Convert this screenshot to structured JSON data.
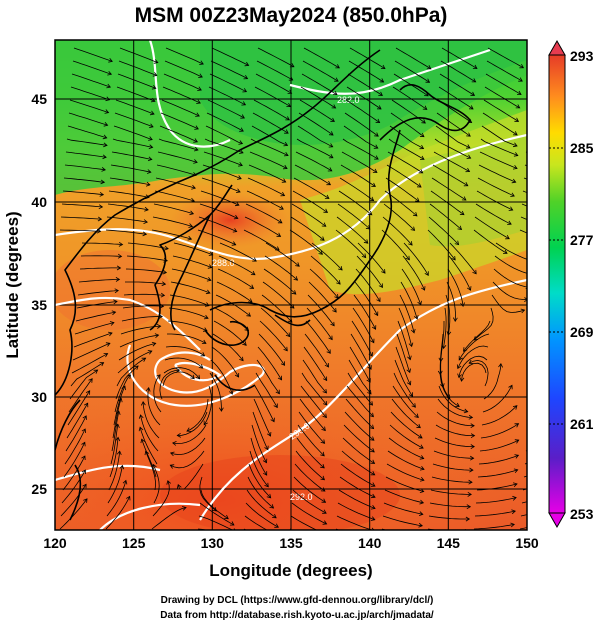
{
  "title": "MSM 00Z23May2024 (850.0hPa)",
  "xlabel": "Longitude (degrees)",
  "ylabel": "Latitude  (degrees)",
  "x_ticks": [
    "120",
    "125",
    "130",
    "135",
    "140",
    "145",
    "150"
  ],
  "y_ticks": [
    "45",
    "40",
    "35",
    "30",
    "25"
  ],
  "colorbar_ticks": [
    "293",
    "285",
    "277",
    "269",
    "261",
    "253"
  ],
  "contour_labels": [
    "282.0",
    "288.0",
    "290.0",
    "292.0"
  ],
  "footer": {
    "line1": "Drawing by DCL (https://www.gfd-dennou.org/library/dcl/)",
    "line2": "Data from http://database.rish.kyoto-u.ac.jp/arch/jmadata/"
  },
  "map": {
    "lon_range": [
      120,
      150
    ],
    "lat_range": [
      22.5,
      47.5
    ],
    "field": "temperature (K) with wind streamlines",
    "colorbar_range": [
      253,
      293
    ],
    "colorbar_colors": [
      "#e600e6",
      "#3c28c8",
      "#1e64ff",
      "#00c8ff",
      "#00e678",
      "#3cd23c",
      "#b4e61e",
      "#ffe600",
      "#ff9b1e",
      "#f05014",
      "#dc3c3c"
    ],
    "contour_color": "#ffffff",
    "coastline_color": "#000000"
  }
}
